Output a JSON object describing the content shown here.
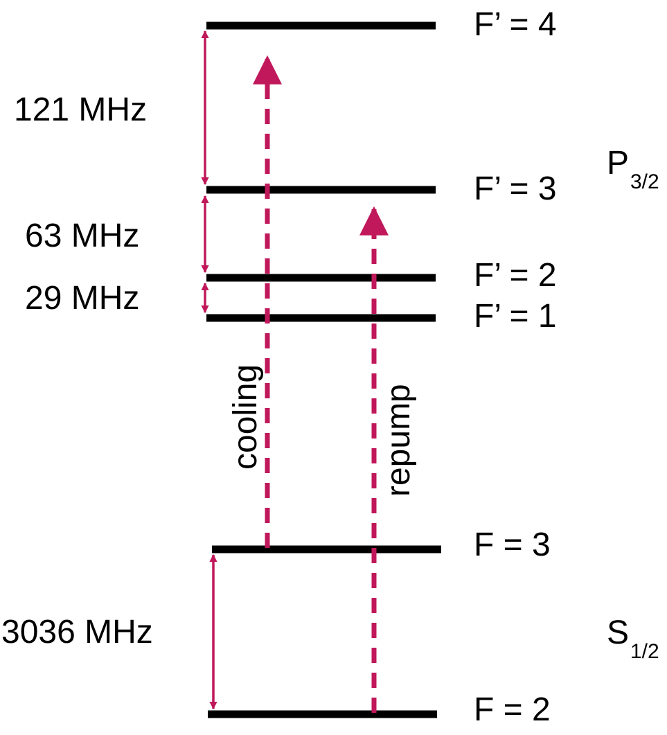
{
  "colors": {
    "level": "#000000",
    "arrow": "#c0185a"
  },
  "levels": {
    "f4": "F’ = 4",
    "f3p": "F’ = 3",
    "f2p": "F’ = 2",
    "f1p": "F’ = 1",
    "f3": "F = 3",
    "f2": "F = 2"
  },
  "manifolds": {
    "p": {
      "main": "P",
      "sub": "3/2"
    },
    "s": {
      "main": "S",
      "sub": "1/2"
    }
  },
  "splittings": {
    "s121": "121 MHz",
    "s63": "63 MHz",
    "s29": "29 MHz",
    "s3036": "3036 MHz"
  },
  "transitions": {
    "cooling": "cooling",
    "repump": "repump"
  }
}
